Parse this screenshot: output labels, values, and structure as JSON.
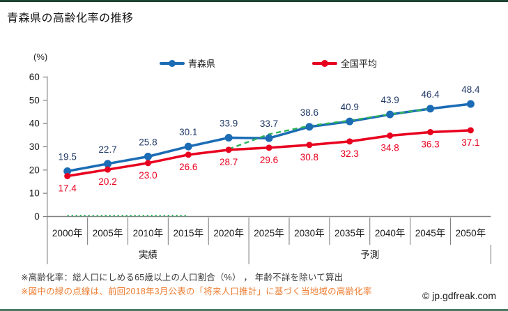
{
  "page": {
    "copyright": "© jp.gdfreak.com",
    "notes": [
      {
        "text": "※高齢化率：総人口にしめる65歳以上の人口割合（%） ， 年齢不詳を除いて算出",
        "color": "#3a3a3a"
      },
      {
        "text": "※図中の緑の点線は、前回2018年3月公表の「将来人口推計」に基づく当地域の高齢化率",
        "color": "#ED7D31"
      }
    ]
  },
  "chart_data": {
    "type": "line",
    "title": "青森県の高齢化率の推移",
    "xlabel": "",
    "ylabel": "(%)",
    "ylim": [
      0,
      60
    ],
    "yticks": [
      0,
      10,
      20,
      30,
      40,
      50,
      60
    ],
    "grid": false,
    "legend_position": "top",
    "categories": [
      "2000年",
      "2005年",
      "2010年",
      "2015年",
      "2020年",
      "2025年",
      "2030年",
      "2035年",
      "2040年",
      "2045年",
      "2050年"
    ],
    "period_bands": [
      {
        "label": "実績",
        "from_index": 0,
        "to_index": 4
      },
      {
        "label": "予測",
        "from_index": 5,
        "to_index": 10
      }
    ],
    "series": [
      {
        "name": "青森県",
        "color": "#1b6cb5",
        "label_color": "#1f3864",
        "values": [
          19.5,
          22.7,
          25.8,
          30.1,
          33.9,
          33.7,
          38.6,
          40.9,
          43.9,
          46.4,
          48.4
        ]
      },
      {
        "name": "全国平均",
        "color": "#e8001f",
        "label_color": "#e8001f",
        "values": [
          17.4,
          20.2,
          23.0,
          26.6,
          28.7,
          29.6,
          30.8,
          32.3,
          34.8,
          36.3,
          37.1
        ]
      }
    ],
    "previous_projection": {
      "name": "前回2018年3月公表の将来人口推計（緑の点線）",
      "color": "#2eb359",
      "segments": [
        {
          "dash": "2 4",
          "points": [
            [
              0,
              0.4
            ],
            [
              3,
              0.4
            ]
          ]
        },
        {
          "dash": "7 5",
          "points": [
            [
              4,
              29.0
            ],
            [
              5,
              35.4
            ],
            [
              6,
              39.0
            ],
            [
              7,
              41.3
            ],
            [
              8,
              44.0
            ],
            [
              9,
              46.4
            ]
          ]
        }
      ]
    }
  }
}
